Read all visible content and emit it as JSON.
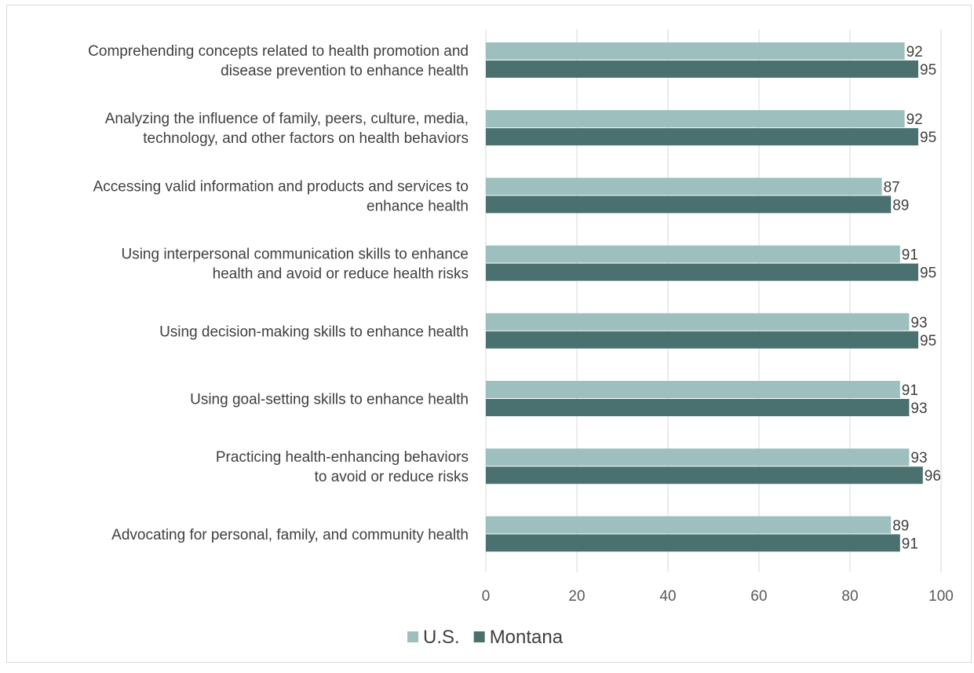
{
  "chart_data": {
    "type": "bar",
    "orientation": "horizontal",
    "title": "",
    "categories": [
      [
        "Comprehending concepts related to health promotion and",
        "disease prevention to enhance health"
      ],
      [
        "Analyzing the influence of family, peers, culture, media,",
        "technology, and other factors on health behaviors"
      ],
      [
        "Accessing valid information and products and services to",
        "enhance health"
      ],
      [
        "Using interpersonal communication skills to enhance",
        "health and avoid or reduce health risks"
      ],
      [
        "Using decision-making skills to enhance health"
      ],
      [
        "Using goal-setting skills to enhance health"
      ],
      [
        "Practicing health-enhancing behaviors",
        "to avoid or reduce risks"
      ],
      [
        "Advocating for personal, family, and community health"
      ]
    ],
    "series": [
      {
        "name": "U.S.",
        "color": "#9dbfbe",
        "values": [
          92,
          92,
          87,
          91,
          93,
          91,
          93,
          89
        ]
      },
      {
        "name": "Montana",
        "color": "#4a716f",
        "values": [
          95,
          95,
          89,
          95,
          95,
          93,
          96,
          91
        ]
      }
    ],
    "xlim": [
      0,
      100
    ],
    "xticks": [
      0,
      20,
      40,
      60,
      80,
      100
    ],
    "grid": true,
    "legend_position": "bottom",
    "data_labels": true
  }
}
